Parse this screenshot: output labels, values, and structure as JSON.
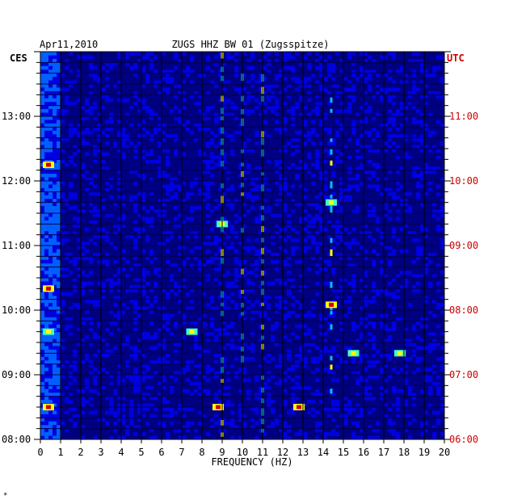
{
  "header": {
    "date": "Apr11,2010",
    "station": "ZUGS HHZ BW 01 (Zugsspitze)"
  },
  "left_zone_label": "CES",
  "right_zone_label": "UTC",
  "colors": {
    "background": "#ffffff",
    "axis_text": "#000000",
    "utc_text": "#cc0000",
    "spectrogram_palette": [
      "#000080",
      "#0000e0",
      "#0060ff",
      "#00c0ff",
      "#40ffc0",
      "#ffff00",
      "#ff6000",
      "#d00000"
    ]
  },
  "chart_data": {
    "type": "heatmap",
    "title": "ZUGS HHZ BW 01 (Zugsspitze)",
    "xlabel": "FREQUENCY (HZ)",
    "ylabel": "",
    "xlim": [
      0,
      20
    ],
    "x_ticks": [
      "0",
      "1",
      "2",
      "3",
      "4",
      "5",
      "6",
      "7",
      "8",
      "9",
      "10",
      "11",
      "12",
      "13",
      "14",
      "15",
      "16",
      "17",
      "18",
      "19",
      "20"
    ],
    "y_ticks_left": [
      "13:00",
      "12:00",
      "11:00",
      "10:00",
      "09:00",
      "08:00"
    ],
    "y_ticks_right": [
      "11:00",
      "10:00",
      "09:00",
      "08:00",
      "07:00",
      "06:00"
    ],
    "time_range_cest": [
      "08:00",
      "14:00"
    ],
    "time_range_utc": [
      "06:00",
      "12:00"
    ],
    "rows_per_hour": 6,
    "grid": true,
    "persistent_lines_hz": [
      9.0,
      10.0,
      11.0,
      14.4
    ],
    "hot_spots": [
      {
        "freq_hz": 0.4,
        "time_cest": "12:15",
        "level": "high"
      },
      {
        "freq_hz": 0.4,
        "time_cest": "10:20",
        "level": "high"
      },
      {
        "freq_hz": 0.4,
        "time_cest": "09:40",
        "level": "medium"
      },
      {
        "freq_hz": 0.4,
        "time_cest": "08:30",
        "level": "high"
      },
      {
        "freq_hz": 8.8,
        "time_cest": "08:30",
        "level": "high"
      },
      {
        "freq_hz": 12.8,
        "time_cest": "08:30",
        "level": "high"
      },
      {
        "freq_hz": 15.5,
        "time_cest": "09:20",
        "level": "medium"
      },
      {
        "freq_hz": 17.8,
        "time_cest": "09:20",
        "level": "medium"
      },
      {
        "freq_hz": 7.5,
        "time_cest": "09:40",
        "level": "medium"
      },
      {
        "freq_hz": 14.4,
        "time_cest": "10:05",
        "level": "high"
      },
      {
        "freq_hz": 14.4,
        "time_cest": "11:40",
        "level": "medium"
      },
      {
        "freq_hz": 9.0,
        "time_cest": "11:20",
        "level": "medium"
      }
    ]
  },
  "footer_mark": "*"
}
